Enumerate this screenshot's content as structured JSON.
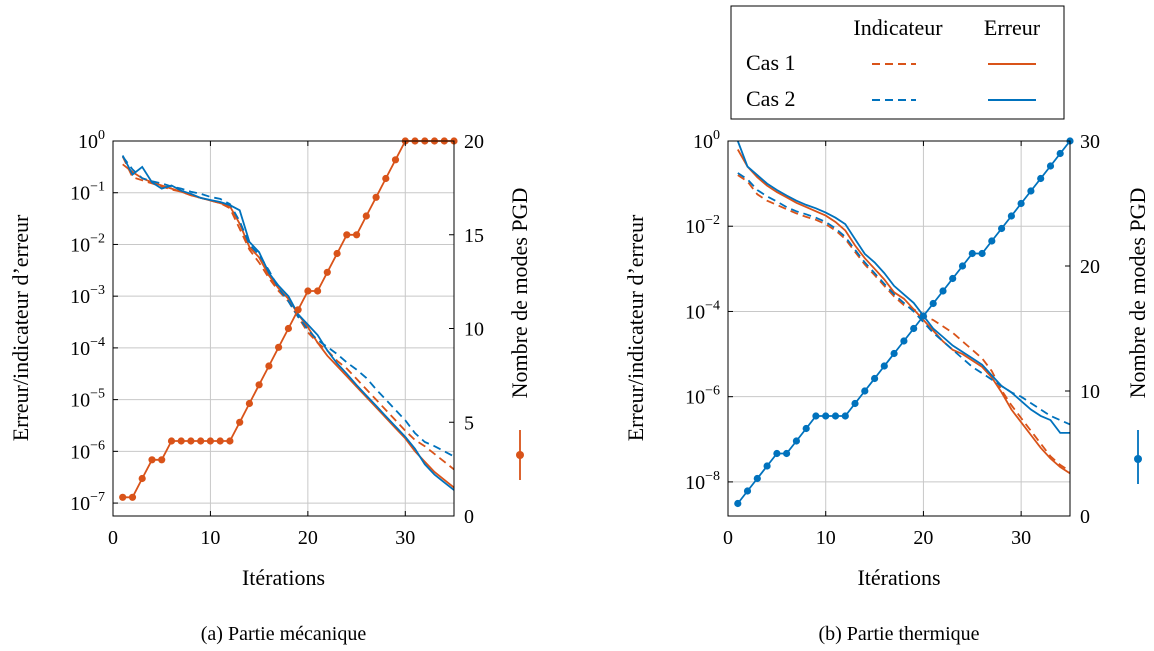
{
  "legend": {
    "header_indicator": "Indicateur",
    "header_error": "Erreur",
    "rows": [
      {
        "label": "Cas 1",
        "color": "#d95319"
      },
      {
        "label": "Cas 2",
        "color": "#0072bd"
      }
    ]
  },
  "chart_data": [
    {
      "type": "line",
      "caption": "(a) Partie mécanique",
      "xlabel": "Itérations",
      "ylabel": "Erreur/indicateur d’erreur",
      "y2label": "Nombre de modes PGD",
      "xlim": [
        0,
        35
      ],
      "ylim_log10": [
        -7.25,
        0
      ],
      "yscale": "log",
      "y2lim": [
        0,
        20
      ],
      "x_ticks": [
        "0",
        "10",
        "20",
        "30"
      ],
      "y_tick_exponents": [
        "0",
        "−1",
        "−2",
        "−3",
        "−4",
        "−5",
        "−6",
        "−7"
      ],
      "y2_ticks": [
        "0",
        "5",
        "10",
        "15",
        "20"
      ],
      "grid": true,
      "x": [
        1,
        2,
        3,
        4,
        5,
        6,
        7,
        8,
        9,
        10,
        11,
        12,
        13,
        14,
        15,
        16,
        17,
        18,
        19,
        20,
        21,
        22,
        23,
        24,
        25,
        26,
        27,
        28,
        29,
        30,
        31,
        32,
        33,
        34,
        35
      ],
      "series": [
        {
          "kind": "indicator",
          "case": "Cas 1",
          "color": "#d95319",
          "log10_values": [
            -0.3,
            -0.7,
            -0.76,
            -0.82,
            -0.88,
            -0.94,
            -0.98,
            -1.05,
            -1.1,
            -1.15,
            -1.2,
            -1.3,
            -1.7,
            -2.1,
            -2.35,
            -2.65,
            -2.9,
            -3.1,
            -3.4,
            -3.7,
            -3.9,
            -4.05,
            -4.25,
            -4.4,
            -4.6,
            -4.8,
            -5.0,
            -5.2,
            -5.4,
            -5.6,
            -5.78,
            -5.9,
            -6.05,
            -6.2,
            -6.35
          ]
        },
        {
          "kind": "error",
          "case": "Cas 1",
          "color": "#d95319",
          "log10_values": [
            -0.45,
            -0.6,
            -0.72,
            -0.8,
            -0.86,
            -0.92,
            -0.98,
            -1.05,
            -1.1,
            -1.15,
            -1.2,
            -1.26,
            -1.6,
            -2.05,
            -2.25,
            -2.6,
            -2.85,
            -3.05,
            -3.35,
            -3.6,
            -3.9,
            -4.15,
            -4.35,
            -4.55,
            -4.75,
            -4.95,
            -5.15,
            -5.35,
            -5.55,
            -5.75,
            -6.0,
            -6.2,
            -6.4,
            -6.55,
            -6.7
          ]
        },
        {
          "kind": "indicator",
          "case": "Cas 2",
          "color": "#0072bd",
          "log10_values": [
            -0.3,
            -0.55,
            -0.72,
            -0.78,
            -0.82,
            -0.88,
            -0.92,
            -0.98,
            -1.02,
            -1.08,
            -1.12,
            -1.22,
            -1.55,
            -2.0,
            -2.2,
            -2.5,
            -2.85,
            -3.1,
            -3.4,
            -3.65,
            -3.85,
            -3.98,
            -4.12,
            -4.28,
            -4.42,
            -4.58,
            -4.8,
            -5.0,
            -5.2,
            -5.4,
            -5.65,
            -5.82,
            -5.9,
            -6.0,
            -6.1
          ]
        },
        {
          "kind": "error",
          "case": "Cas 2",
          "color": "#0072bd",
          "log10_values": [
            -0.28,
            -0.65,
            -0.5,
            -0.8,
            -0.92,
            -0.86,
            -0.96,
            -1.02,
            -1.1,
            -1.14,
            -1.18,
            -1.24,
            -1.34,
            -1.95,
            -2.15,
            -2.55,
            -2.8,
            -3.0,
            -3.35,
            -3.55,
            -3.75,
            -4.05,
            -4.3,
            -4.5,
            -4.72,
            -4.92,
            -5.12,
            -5.32,
            -5.52,
            -5.72,
            -5.95,
            -6.25,
            -6.45,
            -6.6,
            -6.75
          ]
        },
        {
          "kind": "modes",
          "case": "Cas 1",
          "color": "#d95319",
          "axis": "right",
          "values": [
            1,
            1,
            2,
            3,
            3,
            4,
            4,
            4,
            4,
            4,
            4,
            4,
            5,
            6,
            7,
            8,
            9,
            10,
            11,
            12,
            12,
            13,
            14,
            15,
            15,
            16,
            17,
            18,
            19,
            20,
            20,
            20,
            20,
            20,
            20
          ]
        }
      ]
    },
    {
      "type": "line",
      "caption": "(b) Partie thermique",
      "xlabel": "Itérations",
      "ylabel": "Erreur/indicateur d’erreur",
      "y2label": "Nombre de modes PGD",
      "xlim": [
        0,
        35
      ],
      "ylim_log10": [
        -8.8,
        0
      ],
      "yscale": "log",
      "y2lim": [
        0,
        30
      ],
      "x_ticks": [
        "0",
        "10",
        "20",
        "30"
      ],
      "y_tick_exponents": [
        "0",
        "−2",
        "−4",
        "−6",
        "−8"
      ],
      "y2_ticks": [
        "0",
        "10",
        "20",
        "30"
      ],
      "grid": true,
      "x": [
        1,
        2,
        3,
        4,
        5,
        6,
        7,
        8,
        9,
        10,
        11,
        12,
        13,
        14,
        15,
        16,
        17,
        18,
        19,
        20,
        21,
        22,
        23,
        24,
        25,
        26,
        27,
        28,
        29,
        30,
        31,
        32,
        33,
        34,
        35
      ],
      "series": [
        {
          "kind": "indicator",
          "case": "Cas 1",
          "color": "#d95319",
          "log10_values": [
            -0.8,
            -0.95,
            -1.25,
            -1.4,
            -1.5,
            -1.6,
            -1.7,
            -1.78,
            -1.85,
            -1.95,
            -2.1,
            -2.3,
            -2.6,
            -2.9,
            -3.15,
            -3.4,
            -3.65,
            -3.85,
            -3.95,
            -4.1,
            -4.2,
            -4.35,
            -4.5,
            -4.7,
            -4.9,
            -5.1,
            -5.4,
            -5.85,
            -6.2,
            -6.5,
            -6.8,
            -7.1,
            -7.4,
            -7.6,
            -7.75
          ]
        },
        {
          "kind": "error",
          "case": "Cas 1",
          "color": "#d95319",
          "log10_values": [
            -0.2,
            -0.6,
            -0.85,
            -1.05,
            -1.2,
            -1.32,
            -1.45,
            -1.55,
            -1.65,
            -1.75,
            -1.9,
            -2.1,
            -2.45,
            -2.75,
            -3.0,
            -3.25,
            -3.55,
            -3.7,
            -3.95,
            -4.2,
            -4.45,
            -4.7,
            -4.9,
            -5.0,
            -5.15,
            -5.3,
            -5.55,
            -5.9,
            -6.3,
            -6.6,
            -6.9,
            -7.2,
            -7.45,
            -7.65,
            -7.8
          ]
        },
        {
          "kind": "indicator",
          "case": "Cas 2",
          "color": "#0072bd",
          "log10_values": [
            -0.75,
            -0.9,
            -1.15,
            -1.3,
            -1.42,
            -1.55,
            -1.65,
            -1.72,
            -1.8,
            -1.9,
            -2.05,
            -2.25,
            -2.55,
            -2.85,
            -3.1,
            -3.35,
            -3.6,
            -3.8,
            -4.0,
            -4.25,
            -4.5,
            -4.7,
            -4.9,
            -5.1,
            -5.3,
            -5.45,
            -5.6,
            -5.75,
            -5.9,
            -6.0,
            -6.15,
            -6.3,
            -6.45,
            -6.55,
            -6.65
          ]
        },
        {
          "kind": "error",
          "case": "Cas 2",
          "color": "#0072bd",
          "log10_values": [
            0.0,
            -0.6,
            -0.8,
            -1.0,
            -1.15,
            -1.28,
            -1.4,
            -1.5,
            -1.58,
            -1.68,
            -1.8,
            -1.95,
            -2.3,
            -2.65,
            -2.85,
            -3.1,
            -3.4,
            -3.6,
            -3.8,
            -4.1,
            -4.4,
            -4.6,
            -4.8,
            -4.95,
            -5.1,
            -5.25,
            -5.5,
            -5.75,
            -5.9,
            -6.1,
            -6.3,
            -6.45,
            -6.55,
            -6.85,
            -6.85
          ]
        },
        {
          "kind": "modes",
          "case": "Cas 2",
          "color": "#0072bd",
          "axis": "right",
          "values": [
            1,
            2,
            3,
            4,
            5,
            5,
            6,
            7,
            8,
            8,
            8,
            8,
            9,
            10,
            11,
            12,
            13,
            14,
            15,
            16,
            17,
            18,
            19,
            20,
            21,
            21,
            22,
            23,
            24,
            25,
            26,
            27,
            28,
            29,
            30
          ]
        }
      ]
    }
  ]
}
